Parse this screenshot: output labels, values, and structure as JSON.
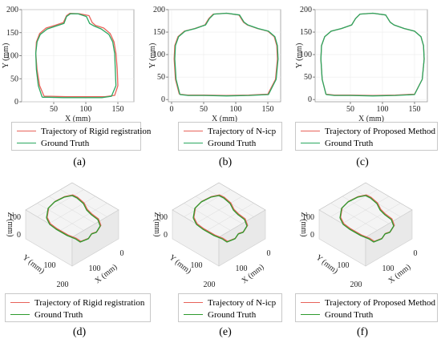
{
  "captions": [
    "(a)",
    "(b)",
    "(c)",
    "(d)",
    "(e)",
    "(f)"
  ],
  "colors": {
    "trajectory": "#e8635a",
    "ground_truth": "#2aa860",
    "ground_truth_3d": "#2e9a2e"
  },
  "chart_data": [
    {
      "type": "line",
      "view": "2d",
      "xlabel": "X (mm)",
      "ylabel": "Y (mm)",
      "xticks": [
        50,
        100,
        150
      ],
      "yticks": [
        0,
        50,
        100,
        150,
        200
      ],
      "xlim": [
        0,
        175
      ],
      "ylim": [
        0,
        200
      ],
      "series": [
        {
          "name": "Trajectory of Rigid registration",
          "x": [
            35,
            28,
            24,
            22,
            23,
            28,
            38,
            52,
            65,
            70,
            75,
            90,
            105,
            110,
            115,
            128,
            138,
            144,
            147,
            149,
            150,
            145,
            130,
            100,
            70,
            45,
            35
          ],
          "y": [
            12,
            35,
            70,
            105,
            130,
            148,
            160,
            166,
            172,
            187,
            192,
            191,
            187,
            172,
            166,
            160,
            148,
            130,
            105,
            70,
            35,
            14,
            11,
            11,
            11,
            12,
            12
          ]
        },
        {
          "name": "Ground Truth",
          "x": [
            32,
            26,
            23,
            22,
            24,
            29,
            40,
            55,
            66,
            70,
            76,
            88,
            101,
            106,
            112,
            124,
            136,
            142,
            145,
            146,
            147,
            140,
            125,
            95,
            65,
            40,
            32
          ],
          "y": [
            10,
            35,
            70,
            105,
            130,
            146,
            158,
            165,
            170,
            185,
            191,
            191,
            185,
            170,
            165,
            158,
            146,
            130,
            105,
            70,
            35,
            12,
            9,
            9,
            9,
            10,
            10
          ]
        }
      ]
    },
    {
      "type": "line",
      "view": "2d",
      "xlabel": "X (mm)",
      "ylabel": "Y (mm)",
      "xticks": [
        0,
        50,
        100,
        150
      ],
      "yticks": [
        0,
        50,
        100,
        150,
        200
      ],
      "xlim": [
        -5,
        170
      ],
      "ylim": [
        -5,
        200
      ],
      "series": [
        {
          "name": "Trajectory of N-icp",
          "x": [
            12,
            6,
            4,
            5,
            10,
            20,
            36,
            52,
            58,
            65,
            85,
            105,
            112,
            118,
            134,
            150,
            160,
            164,
            165,
            162,
            150,
            120,
            85,
            50,
            25,
            12
          ],
          "y": [
            12,
            45,
            90,
            120,
            140,
            152,
            158,
            166,
            180,
            190,
            192,
            188,
            172,
            166,
            158,
            152,
            140,
            120,
            90,
            45,
            12,
            10,
            9,
            10,
            10,
            12
          ]
        },
        {
          "name": "Ground Truth",
          "x": [
            13,
            7,
            5,
            6,
            11,
            21,
            37,
            53,
            59,
            66,
            86,
            106,
            113,
            119,
            135,
            151,
            161,
            165,
            166,
            163,
            151,
            121,
            86,
            51,
            26,
            13
          ],
          "y": [
            11,
            45,
            90,
            120,
            140,
            152,
            158,
            166,
            180,
            190,
            192,
            188,
            172,
            166,
            158,
            152,
            140,
            120,
            90,
            45,
            11,
            9,
            8,
            9,
            9,
            11
          ]
        }
      ]
    },
    {
      "type": "line",
      "view": "2d",
      "xlabel": "X (mm)",
      "ylabel": "Y (mm)",
      "xticks": [
        50,
        100,
        150
      ],
      "yticks": [
        0,
        50,
        100,
        150,
        200
      ],
      "xlim": [
        -5,
        170
      ],
      "ylim": [
        -5,
        200
      ],
      "series": [
        {
          "name": "Trajectory of Proposed Method",
          "x": [
            12,
            6,
            4,
            5,
            10,
            20,
            36,
            52,
            58,
            65,
            85,
            105,
            112,
            118,
            134,
            150,
            160,
            164,
            165,
            162,
            150,
            120,
            85,
            50,
            25,
            12
          ],
          "y": [
            12,
            45,
            90,
            120,
            140,
            152,
            158,
            166,
            180,
            190,
            192,
            188,
            172,
            166,
            158,
            152,
            140,
            120,
            90,
            45,
            12,
            10,
            9,
            10,
            10,
            12
          ]
        },
        {
          "name": "Ground Truth",
          "x": [
            12,
            6,
            4,
            5,
            10,
            20,
            36,
            52,
            58,
            65,
            85,
            105,
            112,
            118,
            134,
            150,
            160,
            164,
            165,
            162,
            150,
            120,
            85,
            50,
            25,
            12
          ],
          "y": [
            11,
            45,
            90,
            120,
            140,
            152,
            158,
            166,
            180,
            190,
            192,
            188,
            172,
            166,
            158,
            152,
            140,
            120,
            90,
            45,
            11,
            9,
            8,
            9,
            9,
            11
          ]
        }
      ]
    },
    {
      "type": "line",
      "view": "3d",
      "xlabel": "X (mm)",
      "ylabel": "Y (mm)",
      "zlabel": "Z (mm)",
      "xticks": [
        0,
        100
      ],
      "yticks": [
        100,
        200
      ],
      "zticks": [
        0,
        100
      ],
      "series": [
        {
          "name": "Trajectory of Rigid registration"
        },
        {
          "name": "Ground Truth"
        }
      ]
    },
    {
      "type": "line",
      "view": "3d",
      "xlabel": "X (mm)",
      "ylabel": "Y (mm)",
      "zlabel": "Z (mm)",
      "xticks": [
        0,
        100
      ],
      "yticks": [
        100,
        200
      ],
      "zticks": [
        0,
        100
      ],
      "series": [
        {
          "name": "Trajectory of N-icp"
        },
        {
          "name": "Ground Truth"
        }
      ]
    },
    {
      "type": "line",
      "view": "3d",
      "xlabel": "X (mm)",
      "ylabel": "Y (mm)",
      "zlabel": "Z (mm)",
      "xticks": [
        0,
        100
      ],
      "yticks": [
        100,
        200
      ],
      "zticks": [
        0,
        100
      ],
      "series": [
        {
          "name": "Trajectory of Proposed Method"
        },
        {
          "name": "Ground Truth"
        }
      ]
    }
  ]
}
